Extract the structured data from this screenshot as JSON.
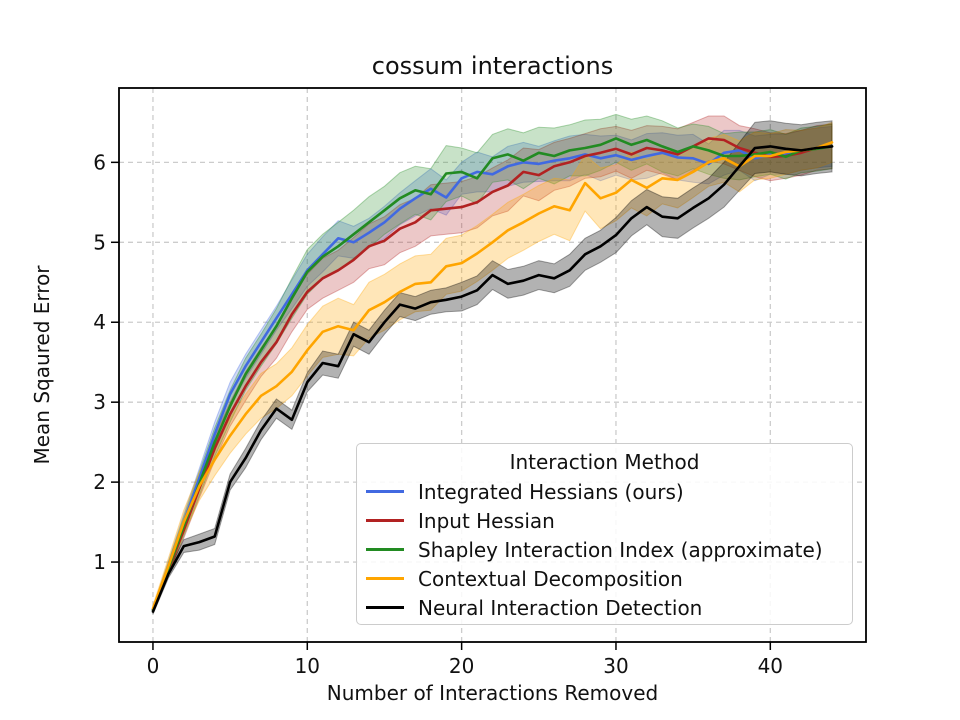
{
  "figure": {
    "background": "#ffffff"
  },
  "chart_data": {
    "type": "line",
    "title": "cossum interactions",
    "xlabel": "Number of Interactions Removed",
    "ylabel": "Mean Sqaured Error",
    "xlim": [
      -2.2,
      46.2
    ],
    "ylim": [
      0.0,
      6.93
    ],
    "xticks": [
      0,
      10,
      20,
      30,
      40
    ],
    "yticks": [
      1,
      2,
      3,
      4,
      5,
      6
    ],
    "grid": true,
    "grid_color": "#cccccc",
    "spine_color": "#000000",
    "legend": {
      "title": "Interaction Method",
      "position": "lower right"
    },
    "x": [
      0,
      1,
      2,
      3,
      4,
      5,
      6,
      7,
      8,
      9,
      10,
      11,
      12,
      13,
      14,
      15,
      16,
      17,
      18,
      19,
      20,
      21,
      22,
      23,
      24,
      25,
      26,
      27,
      28,
      29,
      30,
      31,
      32,
      33,
      34,
      35,
      36,
      37,
      38,
      39,
      40,
      41,
      42,
      43,
      44
    ],
    "series": [
      {
        "name": "Integrated Hessians (ours)",
        "color": "#4169e1",
        "band_alpha": 0.25,
        "values": [
          0.4,
          0.95,
          1.5,
          2.05,
          2.6,
          3.1,
          3.45,
          3.75,
          4.05,
          4.35,
          4.65,
          4.85,
          5.05,
          5.0,
          5.12,
          5.25,
          5.42,
          5.55,
          5.67,
          5.56,
          5.8,
          5.88,
          5.85,
          5.95,
          6.0,
          5.98,
          6.02,
          6.05,
          6.1,
          6.05,
          6.09,
          6.03,
          6.08,
          6.12,
          6.06,
          6.05,
          5.98,
          6.12,
          6.15,
          6.05,
          6.1,
          6.1,
          6.15,
          6.18,
          6.2
        ],
        "band": [
          0.03,
          0.06,
          0.1,
          0.12,
          0.15,
          0.15,
          0.15,
          0.15,
          0.15,
          0.18,
          0.2,
          0.22,
          0.22,
          0.2,
          0.18,
          0.2,
          0.2,
          0.22,
          0.25,
          0.22,
          0.2,
          0.25,
          0.22,
          0.25,
          0.25,
          0.22,
          0.25,
          0.28,
          0.25,
          0.28,
          0.25,
          0.25,
          0.28,
          0.25,
          0.28,
          0.3,
          0.25,
          0.28,
          0.25,
          0.28,
          0.25,
          0.25,
          0.25,
          0.25,
          0.25
        ]
      },
      {
        "name": "Input Hessian",
        "color": "#b22222",
        "band_alpha": 0.25,
        "values": [
          0.4,
          0.9,
          1.4,
          1.92,
          2.42,
          2.85,
          3.2,
          3.5,
          3.75,
          4.1,
          4.38,
          4.55,
          4.65,
          4.78,
          4.95,
          5.02,
          5.17,
          5.25,
          5.4,
          5.42,
          5.44,
          5.5,
          5.63,
          5.71,
          5.88,
          5.84,
          5.95,
          6.0,
          6.08,
          6.12,
          6.17,
          6.1,
          6.18,
          6.15,
          6.1,
          6.2,
          6.3,
          6.28,
          6.18,
          6.12,
          6.07,
          6.08,
          6.12,
          6.18,
          6.2
        ],
        "band": [
          0.03,
          0.06,
          0.1,
          0.12,
          0.15,
          0.15,
          0.18,
          0.18,
          0.2,
          0.22,
          0.22,
          0.25,
          0.25,
          0.28,
          0.28,
          0.3,
          0.3,
          0.3,
          0.32,
          0.32,
          0.32,
          0.32,
          0.3,
          0.32,
          0.3,
          0.32,
          0.3,
          0.3,
          0.28,
          0.3,
          0.28,
          0.3,
          0.28,
          0.3,
          0.32,
          0.3,
          0.28,
          0.3,
          0.28,
          0.3,
          0.3,
          0.28,
          0.28,
          0.28,
          0.28
        ]
      },
      {
        "name": "Shapley Interaction Index (approximate)",
        "color": "#228b22",
        "band_alpha": 0.25,
        "values": [
          0.4,
          0.92,
          1.45,
          1.98,
          2.5,
          2.95,
          3.35,
          3.65,
          3.95,
          4.3,
          4.63,
          4.82,
          4.95,
          5.1,
          5.25,
          5.4,
          5.55,
          5.65,
          5.6,
          5.86,
          5.88,
          5.8,
          6.05,
          6.1,
          6.02,
          6.12,
          6.08,
          6.15,
          6.18,
          6.22,
          6.3,
          6.22,
          6.28,
          6.2,
          6.13,
          6.2,
          6.15,
          6.08,
          6.08,
          6.1,
          6.13,
          6.07,
          6.15,
          6.17,
          6.2
        ],
        "band": [
          0.03,
          0.08,
          0.12,
          0.15,
          0.18,
          0.2,
          0.2,
          0.2,
          0.22,
          0.25,
          0.28,
          0.28,
          0.3,
          0.3,
          0.32,
          0.3,
          0.32,
          0.3,
          0.32,
          0.35,
          0.3,
          0.32,
          0.3,
          0.32,
          0.35,
          0.32,
          0.35,
          0.32,
          0.35,
          0.32,
          0.3,
          0.32,
          0.3,
          0.32,
          0.3,
          0.28,
          0.3,
          0.28,
          0.3,
          0.28,
          0.28,
          0.28,
          0.28,
          0.28,
          0.28
        ]
      },
      {
        "name": "Contextual Decomposition",
        "color": "#ffa500",
        "band_alpha": 0.28,
        "values": [
          0.42,
          0.95,
          1.5,
          1.95,
          2.28,
          2.58,
          2.85,
          3.08,
          3.2,
          3.38,
          3.65,
          3.88,
          3.95,
          3.9,
          4.15,
          4.25,
          4.38,
          4.48,
          4.5,
          4.7,
          4.74,
          4.86,
          5.0,
          5.15,
          5.25,
          5.36,
          5.45,
          5.4,
          5.74,
          5.55,
          5.62,
          5.78,
          5.68,
          5.8,
          5.78,
          5.88,
          6.0,
          6.05,
          5.95,
          6.08,
          6.08,
          6.13,
          6.15,
          6.18,
          6.25
        ],
        "band": [
          0.04,
          0.1,
          0.15,
          0.18,
          0.2,
          0.22,
          0.25,
          0.28,
          0.28,
          0.3,
          0.32,
          0.32,
          0.35,
          0.32,
          0.35,
          0.35,
          0.35,
          0.35,
          0.35,
          0.35,
          0.35,
          0.35,
          0.35,
          0.35,
          0.35,
          0.35,
          0.35,
          0.38,
          0.35,
          0.38,
          0.35,
          0.35,
          0.35,
          0.32,
          0.35,
          0.32,
          0.3,
          0.3,
          0.32,
          0.3,
          0.28,
          0.28,
          0.25,
          0.25,
          0.25
        ]
      },
      {
        "name": "Neural Interaction Detection",
        "color": "#000000",
        "band_alpha": 0.3,
        "values": [
          0.38,
          0.85,
          1.2,
          1.25,
          1.32,
          2.0,
          2.3,
          2.65,
          2.92,
          2.78,
          3.25,
          3.49,
          3.45,
          3.85,
          3.75,
          4.0,
          4.22,
          4.17,
          4.25,
          4.28,
          4.32,
          4.4,
          4.59,
          4.48,
          4.52,
          4.59,
          4.55,
          4.65,
          4.85,
          4.95,
          5.09,
          5.3,
          5.44,
          5.32,
          5.3,
          5.43,
          5.55,
          5.72,
          5.95,
          6.18,
          6.2,
          6.17,
          6.15,
          6.18,
          6.2
        ],
        "band": [
          0.03,
          0.05,
          0.08,
          0.1,
          0.1,
          0.1,
          0.12,
          0.12,
          0.12,
          0.12,
          0.12,
          0.15,
          0.15,
          0.15,
          0.15,
          0.15,
          0.15,
          0.15,
          0.15,
          0.15,
          0.18,
          0.18,
          0.18,
          0.18,
          0.18,
          0.18,
          0.18,
          0.2,
          0.2,
          0.2,
          0.22,
          0.22,
          0.22,
          0.25,
          0.25,
          0.25,
          0.25,
          0.28,
          0.3,
          0.32,
          0.32,
          0.32,
          0.32,
          0.32,
          0.32
        ]
      }
    ]
  }
}
